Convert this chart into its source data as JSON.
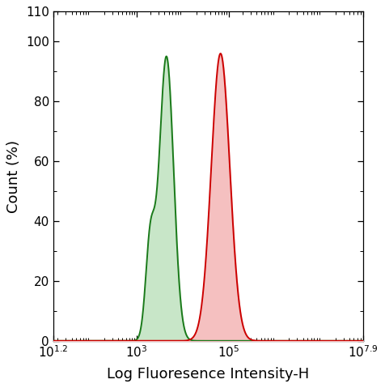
{
  "xlabel": "Log Fluoresence Intensity-H",
  "ylabel": "Count (%)",
  "xlim_log": [
    1.2,
    7.9
  ],
  "ylim": [
    0,
    110
  ],
  "yticks": [
    0,
    20,
    40,
    60,
    80,
    100
  ],
  "xtick_positions_log": [
    1.2,
    3,
    5,
    7.9
  ],
  "green_color": "#1a7a1a",
  "green_fill": "#c8e6c8",
  "red_color": "#cc0000",
  "red_fill": "#f5c0c0",
  "green_peak_log": 3.65,
  "green_peak_height": 95,
  "green_shoulder_log": 3.3,
  "green_shoulder_height": 32,
  "red_peak_log": 4.82,
  "red_peak_height": 96,
  "background_color": "#ffffff"
}
